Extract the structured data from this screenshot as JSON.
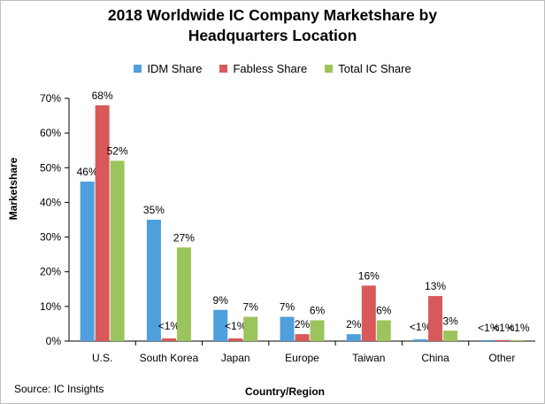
{
  "source": "Source: IC Insights",
  "chart_data": {
    "type": "bar",
    "title_lines": [
      "2018 Worldwide IC Company Marketshare by",
      "Headquarters Location"
    ],
    "xlabel": "Country/Region",
    "ylabel": "Marketshare",
    "ylim": [
      0,
      70
    ],
    "yticks": [
      "0%",
      "10%",
      "20%",
      "30%",
      "40%",
      "50%",
      "60%",
      "70%"
    ],
    "grid": false,
    "legend_position": "top",
    "categories": [
      "U.S.",
      "South Korea",
      "Japan",
      "Europe",
      "Taiwan",
      "China",
      "Other"
    ],
    "series": [
      {
        "name": "IDM Share",
        "color": "#4f9fde",
        "values": [
          46,
          35,
          9,
          7,
          2,
          0.5,
          0.3
        ],
        "labels": [
          "46%",
          "35%",
          "9%",
          "7%",
          "2%",
          "<1%",
          "<1%"
        ]
      },
      {
        "name": "Fabless Share",
        "color": "#d9585a",
        "values": [
          68,
          0.8,
          0.8,
          2,
          16,
          13,
          0.3
        ],
        "labels": [
          "68%",
          "<1%",
          "<1%",
          "2%",
          "16%",
          "13%",
          "<1%"
        ]
      },
      {
        "name": "Total IC Share",
        "color": "#9cc45c",
        "values": [
          52,
          27,
          7,
          6,
          6,
          3,
          0.3
        ],
        "labels": [
          "52%",
          "27%",
          "7%",
          "6%",
          "6%",
          "3%",
          "<1%"
        ]
      }
    ]
  }
}
